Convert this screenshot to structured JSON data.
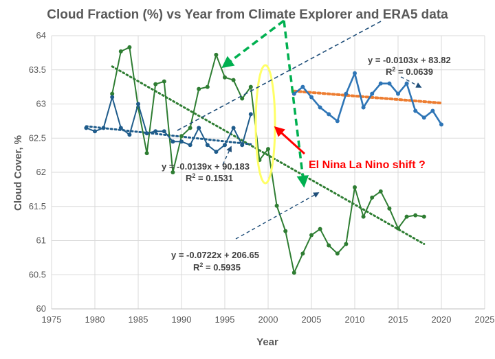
{
  "chart_data": {
    "type": "line",
    "title": "Cloud Fraction (%) vs Year from Climate Explorer and ERA5 data",
    "xlabel": "Year",
    "ylabel": "Cloud Cover, %",
    "xlim": [
      1975,
      2025
    ],
    "ylim": [
      60,
      64
    ],
    "x_ticks": [
      1975,
      1980,
      1985,
      1990,
      1995,
      2000,
      2005,
      2010,
      2015,
      2020,
      2025
    ],
    "y_ticks": [
      60,
      60.5,
      61,
      61.5,
      62,
      62.5,
      63,
      63.5,
      64
    ],
    "grid": true,
    "series": [
      {
        "name": "Climate Explorer (green)",
        "color": "#2e7d32",
        "points": [
          [
            1982,
            63.15
          ],
          [
            1983,
            63.77
          ],
          [
            1984,
            63.83
          ],
          [
            1985,
            62.95
          ],
          [
            1986,
            62.28
          ],
          [
            1987,
            63.29
          ],
          [
            1988,
            63.33
          ],
          [
            1989,
            62.0
          ],
          [
            1990,
            62.53
          ],
          [
            1991,
            62.65
          ],
          [
            1992,
            63.22
          ],
          [
            1993,
            63.25
          ],
          [
            1994,
            63.72
          ],
          [
            1995,
            63.39
          ],
          [
            1996,
            63.35
          ],
          [
            1997,
            63.08
          ],
          [
            1998,
            63.25
          ],
          [
            1999,
            62.18
          ],
          [
            2000,
            62.34
          ],
          [
            2001,
            61.51
          ],
          [
            2002,
            61.14
          ],
          [
            2003,
            60.53
          ],
          [
            2004,
            60.81
          ],
          [
            2005,
            61.08
          ],
          [
            2006,
            61.17
          ],
          [
            2007,
            60.93
          ],
          [
            2008,
            60.81
          ],
          [
            2009,
            60.95
          ],
          [
            2010,
            61.78
          ],
          [
            2011,
            61.35
          ],
          [
            2012,
            61.63
          ],
          [
            2013,
            61.72
          ],
          [
            2014,
            61.47
          ],
          [
            2015,
            61.18
          ],
          [
            2016,
            61.35
          ],
          [
            2017,
            61.37
          ],
          [
            2018,
            61.35
          ]
        ]
      },
      {
        "name": "Climate Explorer (blue)",
        "color": "#1f5c8b",
        "points": [
          [
            1979,
            62.65
          ],
          [
            1980,
            62.6
          ],
          [
            1981,
            62.65
          ],
          [
            1982,
            63.1
          ],
          [
            1983,
            62.65
          ],
          [
            1984,
            62.55
          ],
          [
            1985,
            63.0
          ],
          [
            1986,
            62.57
          ],
          [
            1987,
            62.6
          ],
          [
            1988,
            62.6
          ],
          [
            1989,
            62.45
          ],
          [
            1990,
            62.45
          ],
          [
            1991,
            62.4
          ],
          [
            1992,
            62.65
          ],
          [
            1993,
            62.4
          ],
          [
            1994,
            62.3
          ],
          [
            1995,
            62.4
          ],
          [
            1996,
            62.65
          ],
          [
            1997,
            62.4
          ],
          [
            1998,
            62.85
          ]
        ]
      },
      {
        "name": "ERA5",
        "color": "#2e75b6",
        "points": [
          [
            2003,
            63.15
          ],
          [
            2004,
            63.25
          ],
          [
            2005,
            63.1
          ],
          [
            2006,
            62.95
          ],
          [
            2007,
            62.85
          ],
          [
            2008,
            62.75
          ],
          [
            2009,
            63.15
          ],
          [
            2010,
            63.45
          ],
          [
            2011,
            62.95
          ],
          [
            2012,
            63.15
          ],
          [
            2013,
            63.3
          ],
          [
            2014,
            63.3
          ],
          [
            2015,
            63.15
          ],
          [
            2016,
            63.3
          ],
          [
            2017,
            62.9
          ],
          [
            2018,
            62.8
          ],
          [
            2019,
            62.9
          ],
          [
            2020,
            62.7
          ]
        ]
      }
    ],
    "trendlines": [
      {
        "name": "green trend",
        "color": "#2e7d32",
        "x_range": [
          1982,
          2018
        ],
        "slope": -0.0722,
        "intercept": 206.65
      },
      {
        "name": "blue trend",
        "color": "#1f5c8b",
        "x_range": [
          1979,
          1998
        ],
        "slope": -0.0139,
        "intercept": 90.183
      },
      {
        "name": "ERA5 trend",
        "color": "#ed7d31",
        "x_range": [
          2003,
          2020
        ],
        "slope": -0.0103,
        "intercept": 83.82
      }
    ],
    "annotations": {
      "era5_equation": "y = -0.0103x + 83.82",
      "era5_r2": " = 0.0639",
      "ce_equation": "y = -0.0139x + 90.183",
      "ce_r2": " = 0.1531",
      "green_equation": "y = -0.0722x + 206.65",
      "green_r2": " = 0.5935",
      "shift_label": "El Nina La Nino shift ?"
    }
  }
}
